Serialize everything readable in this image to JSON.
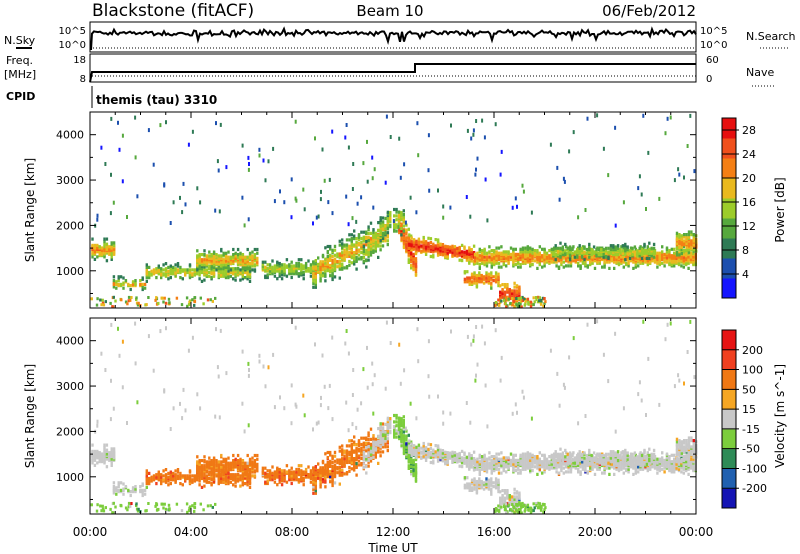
{
  "header": {
    "station": "Blackstone (fitACF)",
    "beam": "Beam 10",
    "date": "06/Feb/2012"
  },
  "summary": {
    "nsky_label": "N.Sky",
    "nsearch_label": "N.Search",
    "freq_label_1": "Freq.",
    "freq_label_2": "[MHz]",
    "nave_label": "Nave",
    "cpid_label": "CPID",
    "cpid_value": "themis (tau) 3310",
    "noise_ticks_left": [
      "10^5",
      "10^0"
    ],
    "noise_ticks_right": [
      "10^5",
      "10^0"
    ],
    "freq_ticks": [
      "18",
      "8"
    ],
    "nave_ticks": [
      "60",
      "0"
    ]
  },
  "time_axis": {
    "label": "Time UT",
    "ticks": [
      "00:00",
      "04:00",
      "08:00",
      "12:00",
      "16:00",
      "20:00",
      "00:00"
    ]
  },
  "chart_data": [
    {
      "type": "heatmap",
      "parameter": "power",
      "ylabel": "Slant Range [km]",
      "yticks": [
        1000,
        2000,
        3000,
        4000
      ],
      "ylim": [
        180,
        4500
      ],
      "xlim_hours": [
        0,
        24
      ],
      "colorbar": {
        "label": "Power [dB]",
        "ticks": [
          4,
          8,
          12,
          16,
          20,
          24,
          28
        ],
        "range": [
          0,
          30
        ]
      },
      "colors": [
        "#1515ff",
        "#1c4fae",
        "#2e7a55",
        "#56a83d",
        "#9ccc2a",
        "#e9b91e",
        "#f47f14",
        "#f0501c",
        "#e60f0f"
      ]
    },
    {
      "type": "heatmap",
      "parameter": "velocity",
      "ylabel": "Slant Range [km]",
      "yticks": [
        1000,
        2000,
        3000,
        4000
      ],
      "ylim": [
        180,
        4500
      ],
      "xlim_hours": [
        0,
        24
      ],
      "colorbar": {
        "label": "Velocity [m s^-1]",
        "ticks": [
          200,
          100,
          50,
          15,
          -15,
          -50,
          -100,
          -200
        ]
      },
      "colors": [
        "#1414b4",
        "#2060b0",
        "#2e8b57",
        "#7ccd3c",
        "#c8c8c8",
        "#f5a623",
        "#f07814",
        "#f04020",
        "#e61414"
      ]
    }
  ]
}
